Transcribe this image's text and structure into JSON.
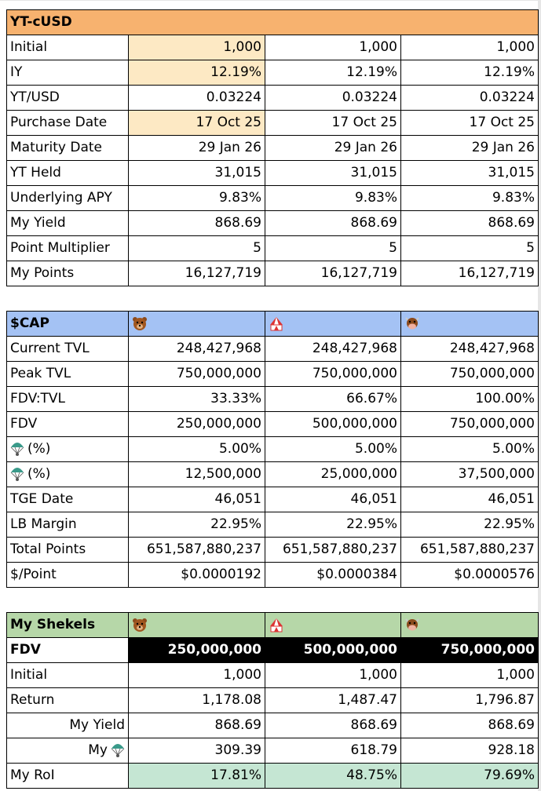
{
  "sections": [
    {
      "title": "YT-cUSD",
      "rows": [
        {
          "label": "Initial",
          "cells": [
            "1,000",
            "1,000",
            "1,000"
          ]
        },
        {
          "label": "IY",
          "cells": [
            "12.19%",
            "12.19%",
            "12.19%"
          ]
        },
        {
          "label": "YT/USD",
          "cells": [
            "0.03224",
            "0.03224",
            "0.03224"
          ]
        },
        {
          "label": "Purchase Date",
          "cells": [
            "17 Oct 25",
            "17 Oct 25",
            "17 Oct 25"
          ]
        },
        {
          "label": "Maturity Date",
          "cells": [
            "29 Jan 26",
            "29 Jan 26",
            "29 Jan 26"
          ]
        },
        {
          "label": "YT Held",
          "cells": [
            "31,015",
            "31,015",
            "31,015"
          ]
        },
        {
          "label": "Underlying APY",
          "cells": [
            "9.83%",
            "9.83%",
            "9.83%"
          ]
        },
        {
          "label": "My Yield",
          "cells": [
            "868.69",
            "868.69",
            "868.69"
          ]
        },
        {
          "label": "Point Multiplier",
          "cells": [
            "5",
            "5",
            "5"
          ]
        },
        {
          "label": "My Points",
          "cells": [
            "16,127,719",
            "16,127,719",
            "16,127,719"
          ]
        }
      ]
    },
    {
      "title": "$CAP",
      "rows": [
        {
          "label": "Current TVL",
          "cells": [
            "248,427,968",
            "248,427,968",
            "248,427,968"
          ]
        },
        {
          "label": "Peak TVL",
          "cells": [
            "750,000,000",
            "750,000,000",
            "750,000,000"
          ]
        },
        {
          "label": "FDV:TVL",
          "cells": [
            "33.33%",
            "66.67%",
            "100.00%"
          ]
        },
        {
          "label": "FDV",
          "cells": [
            "250,000,000",
            "500,000,000",
            "750,000,000"
          ]
        },
        {
          "label": "(%)",
          "cells": [
            "5.00%",
            "5.00%",
            "5.00%"
          ]
        },
        {
          "label": "(%)",
          "cells": [
            "12,500,000",
            "25,000,000",
            "37,500,000"
          ]
        },
        {
          "label": "TGE Date",
          "cells": [
            "46,051",
            "46,051",
            "46,051"
          ]
        },
        {
          "label": "LB Margin",
          "cells": [
            "22.95%",
            "22.95%",
            "22.95%"
          ]
        },
        {
          "label": "Total Points",
          "cells": [
            "651,587,880,237",
            "651,587,880,237",
            "651,587,880,237"
          ]
        },
        {
          "label": "$/Point",
          "cells": [
            "$0.0000192",
            "$0.0000384",
            "$0.0000576"
          ]
        }
      ]
    },
    {
      "title": "My Shekels",
      "rows": [
        {
          "label": "FDV",
          "cells": [
            "250,000,000",
            "500,000,000",
            "750,000,000"
          ]
        },
        {
          "label": "Initial",
          "cells": [
            "1,000",
            "1,000",
            "1,000"
          ]
        },
        {
          "label": "Return",
          "cells": [
            "1,178.08",
            "1,487.47",
            "1,796.87"
          ]
        },
        {
          "label": "My Yield",
          "cells": [
            "868.69",
            "868.69",
            "868.69"
          ]
        },
        {
          "label": "My",
          "cells": [
            "309.39",
            "618.79",
            "928.18"
          ]
        },
        {
          "label": "My RoI",
          "cells": [
            "17.81%",
            "48.75%",
            "79.69%"
          ]
        }
      ]
    }
  ]
}
